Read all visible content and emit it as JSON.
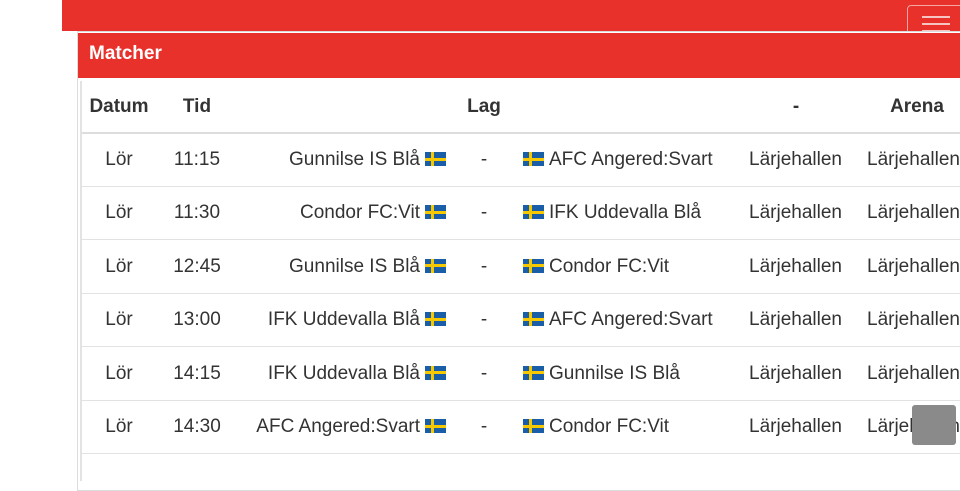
{
  "panel": {
    "title": "Matcher"
  },
  "columns": {
    "datum": "Datum",
    "tid": "Tid",
    "lag": "Lag",
    "dash": "-",
    "arena": "Arena"
  },
  "matches": [
    {
      "datum": "Lör",
      "tid": "11:15",
      "home": "Gunnilse IS Blå",
      "sep": "-",
      "away": "AFC Angered:Svart",
      "col5": "Lärjehallen",
      "arena": "Lärjehallen"
    },
    {
      "datum": "Lör",
      "tid": "11:30",
      "home": "Condor FC:Vit",
      "sep": "-",
      "away": "IFK Uddevalla Blå",
      "col5": "Lärjehallen",
      "arena": "Lärjehallen"
    },
    {
      "datum": "Lör",
      "tid": "12:45",
      "home": "Gunnilse IS Blå",
      "sep": "-",
      "away": "Condor FC:Vit",
      "col5": "Lärjehallen",
      "arena": "Lärjehallen"
    },
    {
      "datum": "Lör",
      "tid": "13:00",
      "home": "IFK Uddevalla Blå",
      "sep": "-",
      "away": "AFC Angered:Svart",
      "col5": "Lärjehallen",
      "arena": "Lärjehallen"
    },
    {
      "datum": "Lör",
      "tid": "14:15",
      "home": "IFK Uddevalla Blå",
      "sep": "-",
      "away": "Gunnilse IS Blå",
      "col5": "Lärjehallen",
      "arena": "Lärjehallen"
    },
    {
      "datum": "Lör",
      "tid": "14:30",
      "home": "AFC Angered:Svart",
      "sep": "-",
      "away": "Condor FC:Vit",
      "col5": "Lärjehallen",
      "arena": "Lärjehallen"
    }
  ],
  "icons": {
    "flag": "sweden-flag-icon",
    "menu": "hamburger-menu-icon"
  },
  "colors": {
    "brand": "#e8312b",
    "flag_blue": "#1b5ea8",
    "flag_yellow": "#f6c800"
  }
}
